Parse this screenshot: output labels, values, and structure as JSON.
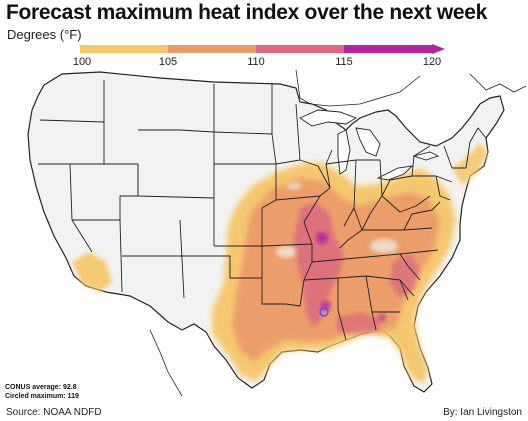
{
  "header": {
    "title": "Forecast maximum heat index over the next week",
    "subtitle": "Degrees (°F)"
  },
  "legend": {
    "ticks": [
      "100",
      "105",
      "110",
      "115",
      "120"
    ],
    "colors": [
      "#f6c667",
      "#eb9a6a",
      "#dc6a80",
      "#b4259f"
    ]
  },
  "map": {
    "colors": {
      "state_fill": "#f2f2f2",
      "state_border": "#222222",
      "heat_low": "#f6c667",
      "heat_mid": "#eb9a6a",
      "heat_high": "#dc6a80",
      "heat_max": "#b4259f",
      "max_marker": "#5a4dff"
    }
  },
  "stats": {
    "conus_average": "CONUS average: 92.8",
    "circled_maximum": "Circled maximum: 119"
  },
  "footer": {
    "source": "Source: NOAA NDFD",
    "credit": "By: Ian Livingston"
  }
}
